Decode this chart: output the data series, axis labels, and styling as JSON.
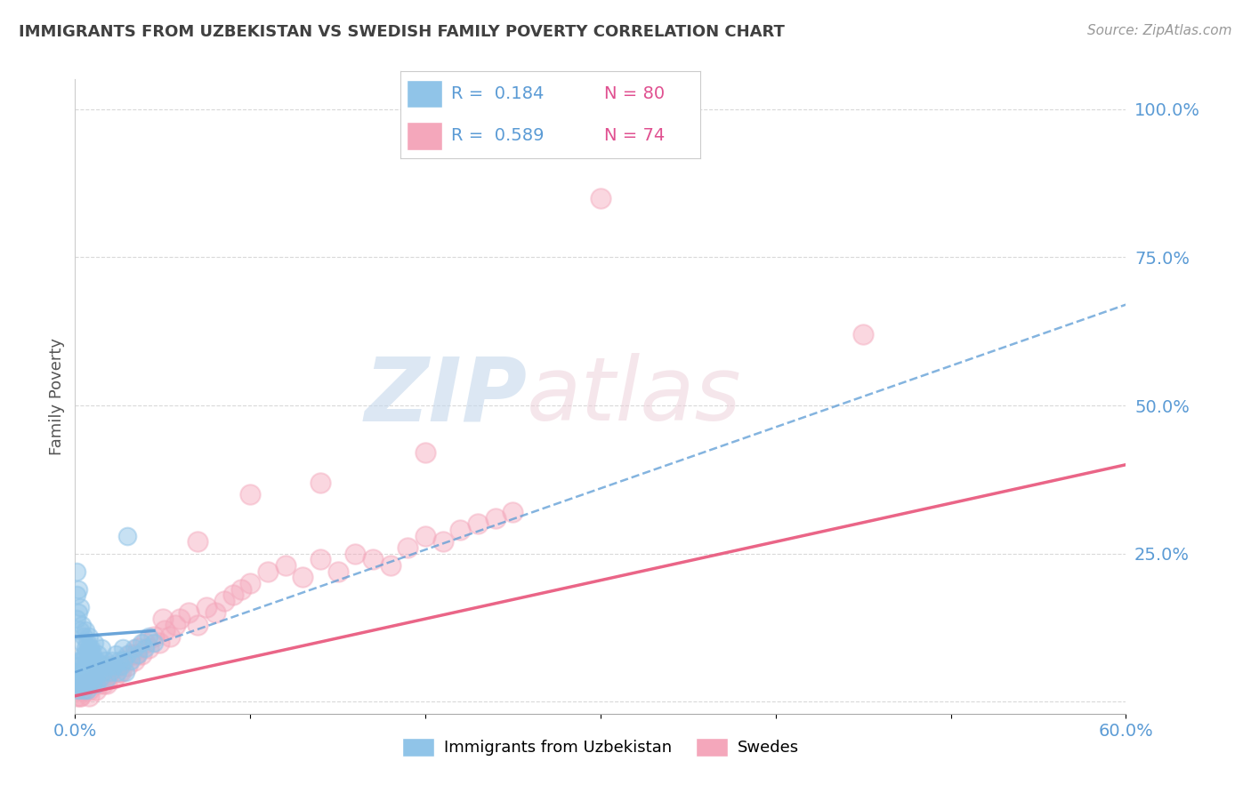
{
  "title": "IMMIGRANTS FROM UZBEKISTAN VS SWEDISH FAMILY POVERTY CORRELATION CHART",
  "source": "Source: ZipAtlas.com",
  "ylabel": "Family Poverty",
  "yticks": [
    0.0,
    0.25,
    0.5,
    0.75,
    1.0
  ],
  "ytick_labels": [
    "",
    "25.0%",
    "50.0%",
    "75.0%",
    "100.0%"
  ],
  "xlim": [
    0.0,
    0.6
  ],
  "ylim": [
    -0.02,
    1.05
  ],
  "legend_r1": "R =  0.184",
  "legend_n1": "N = 80",
  "legend_r2": "R =  0.589",
  "legend_n2": "N = 74",
  "blue_color": "#90c4e8",
  "blue_line_color": "#5b9bd5",
  "pink_color": "#f4a7bb",
  "pink_line_color": "#e8547a",
  "grid_color": "#d0d0d0",
  "tick_label_color": "#5b9bd5",
  "title_color": "#404040",
  "blue_scatter_x": [
    0.001,
    0.001,
    0.002,
    0.002,
    0.002,
    0.003,
    0.003,
    0.003,
    0.003,
    0.004,
    0.004,
    0.004,
    0.005,
    0.005,
    0.005,
    0.006,
    0.006,
    0.006,
    0.007,
    0.007,
    0.007,
    0.008,
    0.008,
    0.008,
    0.009,
    0.009,
    0.01,
    0.01,
    0.01,
    0.011,
    0.011,
    0.012,
    0.012,
    0.013,
    0.013,
    0.014,
    0.015,
    0.015,
    0.016,
    0.017,
    0.018,
    0.019,
    0.02,
    0.021,
    0.022,
    0.023,
    0.024,
    0.025,
    0.026,
    0.027,
    0.028,
    0.029,
    0.03,
    0.032,
    0.034,
    0.036,
    0.038,
    0.04,
    0.042,
    0.045,
    0.001,
    0.001,
    0.001,
    0.002,
    0.002,
    0.003,
    0.003,
    0.004,
    0.004,
    0.005,
    0.005,
    0.006,
    0.006,
    0.007,
    0.008,
    0.008,
    0.009,
    0.01,
    0.011,
    0.03
  ],
  "blue_scatter_y": [
    0.03,
    0.04,
    0.02,
    0.05,
    0.06,
    0.03,
    0.04,
    0.05,
    0.07,
    0.03,
    0.05,
    0.07,
    0.02,
    0.04,
    0.06,
    0.03,
    0.05,
    0.08,
    0.02,
    0.04,
    0.07,
    0.03,
    0.05,
    0.09,
    0.04,
    0.06,
    0.03,
    0.05,
    0.08,
    0.04,
    0.06,
    0.03,
    0.07,
    0.05,
    0.08,
    0.04,
    0.06,
    0.09,
    0.05,
    0.07,
    0.04,
    0.06,
    0.05,
    0.07,
    0.06,
    0.08,
    0.05,
    0.07,
    0.06,
    0.09,
    0.07,
    0.05,
    0.08,
    0.07,
    0.09,
    0.08,
    0.1,
    0.09,
    0.11,
    0.1,
    0.14,
    0.18,
    0.22,
    0.15,
    0.19,
    0.12,
    0.16,
    0.1,
    0.13,
    0.08,
    0.11,
    0.09,
    0.12,
    0.1,
    0.08,
    0.11,
    0.09,
    0.07,
    0.1,
    0.28
  ],
  "pink_scatter_x": [
    0.001,
    0.002,
    0.003,
    0.004,
    0.005,
    0.006,
    0.007,
    0.008,
    0.009,
    0.01,
    0.011,
    0.012,
    0.013,
    0.014,
    0.015,
    0.016,
    0.017,
    0.018,
    0.019,
    0.02,
    0.022,
    0.024,
    0.026,
    0.028,
    0.03,
    0.032,
    0.034,
    0.036,
    0.038,
    0.04,
    0.042,
    0.045,
    0.048,
    0.051,
    0.054,
    0.057,
    0.06,
    0.065,
    0.07,
    0.075,
    0.08,
    0.085,
    0.09,
    0.095,
    0.1,
    0.11,
    0.12,
    0.13,
    0.14,
    0.15,
    0.16,
    0.17,
    0.18,
    0.19,
    0.2,
    0.21,
    0.22,
    0.23,
    0.24,
    0.25,
    0.003,
    0.005,
    0.008,
    0.012,
    0.018,
    0.025,
    0.035,
    0.05,
    0.07,
    0.1,
    0.14,
    0.2,
    0.3,
    0.45
  ],
  "pink_scatter_y": [
    0.01,
    0.02,
    0.01,
    0.02,
    0.03,
    0.02,
    0.03,
    0.02,
    0.03,
    0.04,
    0.03,
    0.04,
    0.03,
    0.05,
    0.04,
    0.03,
    0.05,
    0.04,
    0.06,
    0.05,
    0.04,
    0.06,
    0.05,
    0.07,
    0.06,
    0.08,
    0.07,
    0.09,
    0.08,
    0.1,
    0.09,
    0.11,
    0.1,
    0.12,
    0.11,
    0.13,
    0.14,
    0.15,
    0.13,
    0.16,
    0.15,
    0.17,
    0.18,
    0.19,
    0.2,
    0.22,
    0.23,
    0.21,
    0.24,
    0.22,
    0.25,
    0.24,
    0.23,
    0.26,
    0.28,
    0.27,
    0.29,
    0.3,
    0.31,
    0.32,
    0.01,
    0.02,
    0.01,
    0.02,
    0.03,
    0.05,
    0.08,
    0.14,
    0.27,
    0.35,
    0.37,
    0.42,
    0.85,
    0.62
  ]
}
